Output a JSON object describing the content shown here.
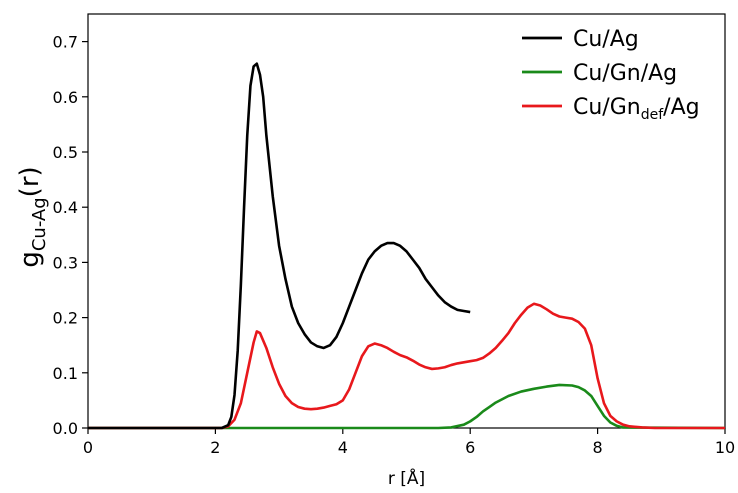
{
  "chart_data": {
    "type": "line",
    "xlabel": "r [Å]",
    "ylabel": {
      "main": "g",
      "sub": "Cu-Ag",
      "suffix": "(r)"
    },
    "xlim": [
      0,
      10
    ],
    "ylim": [
      0,
      0.75
    ],
    "xticks": [
      0,
      2,
      4,
      6,
      8,
      10
    ],
    "yticks": [
      0.0,
      0.1,
      0.2,
      0.3,
      0.4,
      0.5,
      0.6,
      0.7
    ],
    "xtick_labels": [
      "0",
      "2",
      "4",
      "6",
      "8",
      "10"
    ],
    "ytick_labels": [
      "0.0",
      "0.1",
      "0.2",
      "0.3",
      "0.4",
      "0.5",
      "0.6",
      "0.7"
    ],
    "grid": false,
    "legend_position": "top-right",
    "series": [
      {
        "name": "Cu/Ag",
        "legend": {
          "main": "Cu/Ag",
          "sub": "",
          "suffix": ""
        },
        "color": "#000000",
        "x": [
          0,
          2.1,
          2.2,
          2.25,
          2.3,
          2.35,
          2.4,
          2.45,
          2.5,
          2.55,
          2.6,
          2.65,
          2.7,
          2.75,
          2.8,
          2.9,
          3.0,
          3.1,
          3.2,
          3.3,
          3.4,
          3.5,
          3.6,
          3.7,
          3.8,
          3.9,
          4.0,
          4.1,
          4.2,
          4.3,
          4.4,
          4.5,
          4.6,
          4.7,
          4.8,
          4.9,
          5.0,
          5.1,
          5.2,
          5.3,
          5.4,
          5.5,
          5.6,
          5.7,
          5.8,
          5.9,
          6.0
        ],
        "y": [
          0,
          0,
          0.005,
          0.02,
          0.06,
          0.14,
          0.26,
          0.4,
          0.53,
          0.62,
          0.655,
          0.66,
          0.64,
          0.6,
          0.53,
          0.42,
          0.33,
          0.27,
          0.22,
          0.19,
          0.17,
          0.155,
          0.148,
          0.145,
          0.15,
          0.165,
          0.19,
          0.22,
          0.25,
          0.28,
          0.305,
          0.32,
          0.33,
          0.335,
          0.335,
          0.33,
          0.32,
          0.305,
          0.29,
          0.27,
          0.255,
          0.24,
          0.228,
          0.22,
          0.214,
          0.212,
          0.21
        ]
      },
      {
        "name": "Cu/Gn/Ag",
        "legend": {
          "main": "Cu/Gn/Ag",
          "sub": "",
          "suffix": ""
        },
        "color": "#1a8a1a",
        "x": [
          0,
          5.5,
          5.7,
          5.9,
          6.0,
          6.1,
          6.2,
          6.3,
          6.4,
          6.6,
          6.8,
          7.0,
          7.2,
          7.4,
          7.6,
          7.7,
          7.8,
          7.9,
          8.0,
          8.1,
          8.2,
          8.3,
          8.4,
          10
        ],
        "y": [
          0,
          0,
          0.001,
          0.006,
          0.012,
          0.02,
          0.03,
          0.038,
          0.046,
          0.058,
          0.066,
          0.071,
          0.075,
          0.078,
          0.077,
          0.074,
          0.068,
          0.058,
          0.04,
          0.022,
          0.01,
          0.004,
          0.001,
          0
        ]
      },
      {
        "name": "Cu/Gn_def/Ag",
        "legend": {
          "main": "Cu/Gn",
          "sub": "def",
          "suffix": "/Ag"
        },
        "color": "#e8181c",
        "x": [
          0,
          2.1,
          2.2,
          2.3,
          2.4,
          2.5,
          2.6,
          2.65,
          2.7,
          2.8,
          2.9,
          3.0,
          3.1,
          3.2,
          3.3,
          3.4,
          3.5,
          3.6,
          3.7,
          3.8,
          3.9,
          4.0,
          4.1,
          4.2,
          4.3,
          4.4,
          4.5,
          4.6,
          4.7,
          4.8,
          4.9,
          5.0,
          5.1,
          5.2,
          5.3,
          5.4,
          5.5,
          5.6,
          5.7,
          5.8,
          5.9,
          6.0,
          6.1,
          6.2,
          6.3,
          6.4,
          6.5,
          6.6,
          6.7,
          6.8,
          6.9,
          7.0,
          7.1,
          7.2,
          7.3,
          7.4,
          7.5,
          7.6,
          7.7,
          7.8,
          7.9,
          8.0,
          8.1,
          8.2,
          8.3,
          8.4,
          8.5,
          8.7,
          8.9,
          10
        ],
        "y": [
          0,
          0,
          0.003,
          0.015,
          0.045,
          0.1,
          0.155,
          0.175,
          0.172,
          0.145,
          0.11,
          0.08,
          0.058,
          0.045,
          0.038,
          0.035,
          0.034,
          0.035,
          0.037,
          0.04,
          0.043,
          0.05,
          0.07,
          0.1,
          0.13,
          0.148,
          0.153,
          0.15,
          0.145,
          0.138,
          0.132,
          0.128,
          0.122,
          0.115,
          0.11,
          0.107,
          0.108,
          0.11,
          0.114,
          0.117,
          0.119,
          0.121,
          0.123,
          0.127,
          0.135,
          0.145,
          0.158,
          0.172,
          0.19,
          0.205,
          0.218,
          0.225,
          0.222,
          0.215,
          0.207,
          0.202,
          0.2,
          0.198,
          0.192,
          0.18,
          0.15,
          0.09,
          0.045,
          0.022,
          0.012,
          0.006,
          0.003,
          0.001,
          0,
          0
        ]
      }
    ]
  }
}
